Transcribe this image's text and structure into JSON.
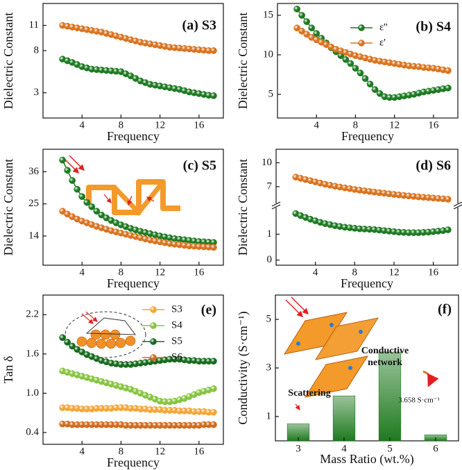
{
  "chart_data": [
    {
      "type": "line",
      "title": "(a) S3",
      "xlabel": "Frequency",
      "ylabel": "Dielectric Constant",
      "x": [
        2,
        2.5,
        3,
        3.5,
        4,
        4.5,
        5,
        5.5,
        6,
        6.5,
        7,
        7.5,
        8,
        8.5,
        9,
        9.5,
        10,
        10.5,
        11,
        11.5,
        12,
        12.5,
        13,
        13.5,
        14,
        14.5,
        15,
        15.5,
        16,
        16.5,
        17,
        17.5
      ],
      "xlim": [
        0,
        18.5
      ],
      "xticks": [
        4,
        8,
        12,
        16
      ],
      "ylim": [
        0,
        13.6
      ],
      "yticks": [
        3,
        8,
        11
      ],
      "series": [
        {
          "color": "#1d7a22",
          "values": [
            7.0,
            6.8,
            6.6,
            6.35,
            6.1,
            5.95,
            5.8,
            5.75,
            5.7,
            5.65,
            5.6,
            5.55,
            5.5,
            5.25,
            5.0,
            4.7,
            4.4,
            4.2,
            4.0,
            3.9,
            3.8,
            3.7,
            3.6,
            3.5,
            3.4,
            3.25,
            3.1,
            3.0,
            2.9,
            2.8,
            2.7,
            2.65
          ]
        },
        {
          "color": "#d9731f",
          "values": [
            11.0,
            10.9,
            10.8,
            10.7,
            10.6,
            10.5,
            10.4,
            10.3,
            10.2,
            10.05,
            9.9,
            9.75,
            9.6,
            9.45,
            9.3,
            9.15,
            9.0,
            8.9,
            8.8,
            8.7,
            8.6,
            8.5,
            8.4,
            8.35,
            8.3,
            8.25,
            8.2,
            8.15,
            8.1,
            8.05,
            8.0,
            8.0
          ]
        }
      ]
    },
    {
      "type": "line",
      "title": "(b) S4",
      "xlabel": "Frequency",
      "ylabel": "Dielectric Constant",
      "x": [
        2,
        2.5,
        3,
        3.5,
        4,
        4.5,
        5,
        5.5,
        6,
        6.5,
        7,
        7.5,
        8,
        8.5,
        9,
        9.5,
        10,
        10.5,
        11,
        11.5,
        12,
        12.5,
        13,
        13.5,
        14,
        14.5,
        15,
        15.5,
        16,
        16.5,
        17,
        17.5
      ],
      "xlim": [
        0,
        18.5
      ],
      "xticks": [
        4,
        8,
        12,
        16
      ],
      "ylim": [
        2,
        16.5
      ],
      "yticks": [
        5,
        10,
        15
      ],
      "series": [
        {
          "name": "ε''",
          "color": "#1d7a22",
          "values": [
            15.8,
            15.0,
            14.2,
            13.4,
            12.7,
            12.1,
            11.5,
            10.9,
            10.4,
            9.9,
            9.4,
            8.9,
            8.3,
            7.7,
            7.0,
            6.3,
            5.6,
            5.1,
            4.7,
            4.6,
            4.6,
            4.7,
            4.8,
            4.9,
            5.0,
            5.15,
            5.3,
            5.4,
            5.5,
            5.6,
            5.7,
            5.8
          ]
        },
        {
          "name": "ε'",
          "color": "#d9731f",
          "values": [
            13.4,
            13.0,
            12.6,
            12.2,
            11.9,
            11.6,
            11.3,
            11.0,
            10.7,
            10.5,
            10.3,
            10.1,
            9.9,
            9.75,
            9.6,
            9.45,
            9.3,
            9.2,
            9.1,
            9.0,
            8.9,
            8.8,
            8.7,
            8.6,
            8.55,
            8.5,
            8.4,
            8.35,
            8.3,
            8.2,
            8.1,
            8.0
          ]
        }
      ]
    },
    {
      "type": "line",
      "title": "(c) S5",
      "xlabel": "Frequency",
      "ylabel": "Dielectric Constant",
      "x": [
        2,
        2.5,
        3,
        3.5,
        4,
        4.5,
        5,
        5.5,
        6,
        6.5,
        7,
        7.5,
        8,
        8.5,
        9,
        9.5,
        10,
        10.5,
        11,
        11.5,
        12,
        12.5,
        13,
        13.5,
        14,
        14.5,
        15,
        15.5,
        16,
        16.5,
        17,
        17.5
      ],
      "xlim": [
        0,
        18.5
      ],
      "xticks": [
        4,
        8,
        12,
        16
      ],
      "ylim": [
        4,
        43.7
      ],
      "yticks": [
        14,
        25,
        36
      ],
      "series": [
        {
          "color": "#1d7a22",
          "values": [
            40.0,
            36.5,
            33.0,
            30.0,
            27.5,
            25.5,
            24.0,
            22.5,
            21.2,
            20.2,
            19.3,
            18.5,
            17.8,
            17.2,
            16.6,
            16.1,
            15.6,
            15.2,
            14.8,
            14.4,
            14.0,
            13.7,
            13.4,
            13.1,
            12.9,
            12.7,
            12.5,
            12.3,
            12.1,
            12.0,
            11.9,
            11.8
          ]
        },
        {
          "color": "#d9731f",
          "values": [
            22.5,
            21.5,
            20.6,
            19.8,
            19.1,
            18.5,
            17.9,
            17.3,
            16.8,
            16.3,
            15.8,
            15.4,
            15.0,
            14.6,
            14.2,
            13.8,
            13.4,
            13.0,
            12.6,
            12.3,
            12.0,
            11.7,
            11.4,
            11.2,
            11.0,
            10.8,
            10.6,
            10.5,
            10.4,
            10.3,
            10.2,
            10.1
          ]
        }
      ]
    },
    {
      "type": "line",
      "title": "(d) S6",
      "xlabel": "Frequency",
      "ylabel": "Dielectric Constant",
      "x": [
        2,
        2.5,
        3,
        3.5,
        4,
        4.5,
        5,
        5.5,
        6,
        6.5,
        7,
        7.5,
        8,
        8.5,
        9,
        9.5,
        10,
        10.5,
        11,
        11.5,
        12,
        12.5,
        13,
        13.5,
        14,
        14.5,
        15,
        15.5,
        16,
        16.5,
        17,
        17.5
      ],
      "xlim": [
        0,
        18.5
      ],
      "xticks": [
        4,
        8,
        12,
        16
      ],
      "ylim": [
        -0.2,
        11.7
      ],
      "y_break": [
        2,
        5
      ],
      "yticks": [
        0,
        1,
        7,
        10
      ],
      "series": [
        {
          "color": "#1d7a22",
          "values": [
            1.8,
            1.72,
            1.65,
            1.58,
            1.52,
            1.46,
            1.41,
            1.37,
            1.33,
            1.3,
            1.27,
            1.25,
            1.23,
            1.21,
            1.2,
            1.19,
            1.18,
            1.16,
            1.14,
            1.12,
            1.1,
            1.08,
            1.07,
            1.06,
            1.06,
            1.06,
            1.07,
            1.08,
            1.1,
            1.12,
            1.14,
            1.17
          ]
        },
        {
          "color": "#d9731f",
          "values": [
            8.2,
            8.05,
            7.9,
            7.75,
            7.6,
            7.45,
            7.3,
            7.18,
            7.06,
            6.95,
            6.85,
            6.75,
            6.65,
            6.56,
            6.48,
            6.4,
            6.32,
            6.25,
            6.18,
            6.1,
            6.03,
            5.96,
            5.9,
            5.84,
            5.78,
            5.72,
            5.67,
            5.62,
            5.57,
            5.52,
            5.47,
            5.42
          ]
        }
      ]
    },
    {
      "type": "line",
      "title": "(e)",
      "xlabel": "Frequency",
      "ylabel": "Tan δ",
      "x": [
        2,
        2.5,
        3,
        3.5,
        4,
        4.5,
        5,
        5.5,
        6,
        6.5,
        7,
        7.5,
        8,
        8.5,
        9,
        9.5,
        10,
        10.5,
        11,
        11.5,
        12,
        12.5,
        13,
        13.5,
        14,
        14.5,
        15,
        15.5,
        16,
        16.5,
        17,
        17.5
      ],
      "xlim": [
        0,
        18.5
      ],
      "xticks": [
        4,
        8,
        12,
        16
      ],
      "ylim": [
        0.22,
        2.5
      ],
      "yticks": [
        0.4,
        {
          "value": 1,
          "label": "1.0"
        },
        1.6,
        2.2
      ],
      "series": [
        {
          "name": "S3",
          "color": "#f4a535",
          "values": [
            0.78,
            0.78,
            0.77,
            0.77,
            0.76,
            0.76,
            0.76,
            0.77,
            0.77,
            0.77,
            0.77,
            0.78,
            0.78,
            0.78,
            0.77,
            0.77,
            0.76,
            0.76,
            0.75,
            0.75,
            0.75,
            0.74,
            0.74,
            0.74,
            0.73,
            0.73,
            0.73,
            0.72,
            0.72,
            0.72,
            0.71,
            0.71
          ]
        },
        {
          "name": "S4",
          "color": "#86c440",
          "values": [
            1.34,
            1.32,
            1.3,
            1.28,
            1.26,
            1.24,
            1.22,
            1.2,
            1.18,
            1.16,
            1.14,
            1.12,
            1.1,
            1.08,
            1.06,
            1.03,
            1.0,
            0.97,
            0.94,
            0.91,
            0.88,
            0.87,
            0.87,
            0.88,
            0.9,
            0.92,
            0.95,
            0.98,
            1.01,
            1.03,
            1.05,
            1.07
          ]
        },
        {
          "name": "S5",
          "color": "#166b1c",
          "values": [
            1.85,
            1.78,
            1.72,
            1.67,
            1.63,
            1.59,
            1.56,
            1.53,
            1.5,
            1.48,
            1.46,
            1.45,
            1.44,
            1.44,
            1.44,
            1.45,
            1.46,
            1.47,
            1.48,
            1.49,
            1.5,
            1.51,
            1.52,
            1.52,
            1.52,
            1.51,
            1.5,
            1.5,
            1.49,
            1.49,
            1.49,
            1.49
          ]
        },
        {
          "name": "S6",
          "color": "#d06a1d",
          "values": [
            0.53,
            0.53,
            0.52,
            0.52,
            0.52,
            0.52,
            0.52,
            0.52,
            0.52,
            0.52,
            0.52,
            0.52,
            0.52,
            0.51,
            0.51,
            0.51,
            0.51,
            0.51,
            0.51,
            0.51,
            0.51,
            0.51,
            0.51,
            0.51,
            0.51,
            0.51,
            0.51,
            0.51,
            0.51,
            0.52,
            0.52,
            0.52
          ]
        }
      ]
    },
    {
      "type": "bar",
      "title": "(f)",
      "xlabel": "Mass Ratio (wt.%)",
      "ylabel": "Conductivity (S·cm⁻¹)",
      "categories": [
        "3",
        "4",
        "5",
        "6"
      ],
      "values": [
        0.7,
        1.85,
        3.658,
        0.25
      ],
      "color": "#1f7a1f",
      "ylim": [
        0,
        6
      ],
      "yticks": [
        1,
        3,
        5
      ],
      "annotations": [
        "Conductive",
        "network",
        "3.658 S·cm⁻¹",
        "Scattering"
      ]
    }
  ]
}
